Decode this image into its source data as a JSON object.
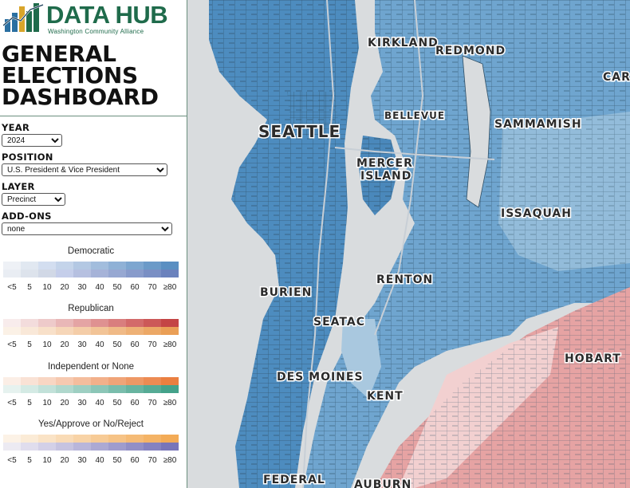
{
  "brand": {
    "title": "DATA HUB",
    "subtitle": "Washington Community Alliance"
  },
  "dashboard": {
    "title_lines": [
      "GENERAL",
      "ELECTIONS",
      "DASHBOARD"
    ]
  },
  "controls": {
    "year": {
      "label": "YEAR",
      "value": "2024"
    },
    "position": {
      "label": "POSITION",
      "value": "U.S. President & Vice President"
    },
    "layer": {
      "label": "LAYER",
      "value": "Precinct"
    },
    "addons": {
      "label": "ADD-ONS",
      "value": "none"
    }
  },
  "legend": {
    "ticks": [
      "<5",
      "5",
      "10",
      "20",
      "30",
      "40",
      "50",
      "60",
      "70",
      "≥80"
    ],
    "categories": [
      {
        "name": "Democratic",
        "top": [
          "#eef1f6",
          "#e1e8f1",
          "#d3def0",
          "#c4d4ea",
          "#b3c8e3",
          "#a2bddd",
          "#8fb1d6",
          "#7da6d0",
          "#6b9ac8",
          "#5a8fc2"
        ],
        "bottom": [
          "#e9edf3",
          "#dde3ec",
          "#d1d8e6",
          "#c5ceea",
          "#b6c0e0",
          "#a6b3d8",
          "#97a8d2",
          "#889bcb",
          "#7a8fc4",
          "#6b82bd"
        ]
      },
      {
        "name": "Republican",
        "top": [
          "#f8ecec",
          "#f3dcdc",
          "#eecaca",
          "#e9b7b7",
          "#e4a4a4",
          "#df9191",
          "#d97e7e",
          "#d36a6a",
          "#cc5858",
          "#c44545"
        ],
        "bottom": [
          "#fbf1e6",
          "#f9e8d8",
          "#f8e0c9",
          "#f6d6b8",
          "#f4cda8",
          "#f2c497",
          "#f0ba87",
          "#eeb176",
          "#eca866",
          "#ea9f56"
        ]
      },
      {
        "name": "Independent or None",
        "top": [
          "#fbeee6",
          "#f9e2d5",
          "#f8d6c3",
          "#f6c9b0",
          "#f4bd9d",
          "#f2b08a",
          "#f0a478",
          "#ee9865",
          "#ec8b53",
          "#ea7f40"
        ],
        "bottom": [
          "#e6f2ef",
          "#d4eae4",
          "#c2e1d9",
          "#b0d8cd",
          "#9ecfc2",
          "#8cc6b7",
          "#7abdac",
          "#68b4a0",
          "#56ab95",
          "#44a28a"
        ]
      },
      {
        "name": "Yes/Approve or No/Reject",
        "top": [
          "#fcf2e6",
          "#fbebd6",
          "#fae3c6",
          "#f9dbb6",
          "#f8d3a6",
          "#f7cb96",
          "#f6c386",
          "#f5bb76",
          "#f4b366",
          "#f3ab56"
        ],
        "bottom": [
          "#eceaf2",
          "#e0dded",
          "#d3d0e7",
          "#c6c3e0",
          "#b9b6da",
          "#aca9d3",
          "#9f9ccd",
          "#928fc6",
          "#8582c0",
          "#7875b9"
        ]
      }
    ]
  },
  "map": {
    "labels": [
      {
        "text": "KIRKLAND"
      },
      {
        "text": "REDMOND"
      },
      {
        "text": "CARN"
      },
      {
        "text": "BELLEVUE"
      },
      {
        "text": "SEATTLE"
      },
      {
        "text": "SAMMAMISH"
      },
      {
        "text": "MERCER"
      },
      {
        "text": "ISLAND"
      },
      {
        "text": "ISSAQUAH"
      },
      {
        "text": "RENTON"
      },
      {
        "text": "BURIEN"
      },
      {
        "text": "SEATAC"
      },
      {
        "text": "HOBART"
      },
      {
        "text": "DES MOINES"
      },
      {
        "text": "KENT"
      },
      {
        "text": "FEDERAL"
      },
      {
        "text": "AUBURN"
      }
    ]
  }
}
